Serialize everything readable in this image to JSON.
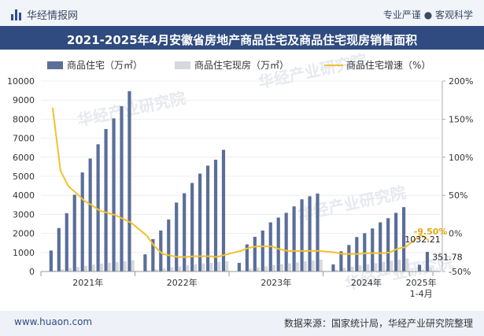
{
  "header": {
    "brand": "华经情报网",
    "tagline": "专业严谨 ● 客观科学"
  },
  "title": "2021-2025年4月安徽省房地产商品住宅及商品住宅现房销售面积",
  "footer": {
    "site": "www.huaon.com",
    "source": "数据来源：国家统计局，华经产业研究院整理"
  },
  "watermark": "华经产业研究院",
  "chart_data": {
    "type": "bar",
    "x_tick_labels": [
      "2021年",
      "2022年",
      "2023年",
      "2024年",
      "2025年\n1-4月"
    ],
    "ylim_left": [
      0,
      10000
    ],
    "yticks_left": [
      "0",
      "1000",
      "2000",
      "3000",
      "4000",
      "5000",
      "6000",
      "7000",
      "8000",
      "9000",
      "10000"
    ],
    "ylim_right": [
      -50,
      200
    ],
    "yticks_right": [
      "-50%",
      "0%",
      "50%",
      "100%",
      "150%",
      "200%"
    ],
    "legend_position": "top",
    "colors": {
      "residential": "#5a6e98",
      "existing": "#d5d8de",
      "growth": "#f3c12d"
    },
    "series": [
      {
        "name": "商品住宅（万㎡）",
        "axis": "left",
        "values": [
          1100,
          2280,
          3060,
          4030,
          5200,
          5930,
          6680,
          7480,
          8040,
          8680,
          9470,
          900,
          1700,
          2150,
          2730,
          3620,
          4110,
          4650,
          5140,
          5560,
          5870,
          6390,
          450,
          1420,
          1820,
          2150,
          2580,
          2830,
          3080,
          3420,
          3790,
          3950,
          4090,
          370,
          1060,
          1390,
          1810,
          2010,
          2260,
          2580,
          2800,
          3080,
          3380,
          351.78,
          1032.21
        ]
      },
      {
        "name": "商品住宅现房（万㎡）",
        "axis": "left",
        "values": [
          50,
          120,
          180,
          240,
          300,
          360,
          410,
          460,
          500,
          540,
          590,
          60,
          120,
          170,
          220,
          270,
          320,
          370,
          420,
          460,
          500,
          540,
          70,
          150,
          210,
          270,
          330,
          380,
          430,
          480,
          530,
          580,
          620,
          90,
          180,
          250,
          320,
          380,
          440,
          500,
          560,
          620,
          680,
          100,
          200
        ]
      },
      {
        "name": "商品住宅增速（%）",
        "axis": "right",
        "values": [
          165,
          82,
          62,
          53,
          43,
          37,
          30,
          27,
          24,
          19,
          14,
          -3,
          -17,
          -27,
          -29,
          -31,
          -31,
          -30,
          -30,
          -30,
          -31,
          -28,
          -23,
          -19,
          -17,
          -17,
          -17,
          -21,
          -23,
          -23,
          -23,
          -23,
          -23,
          -25,
          -27,
          -27,
          -27,
          -26,
          -26,
          -26,
          -25,
          -20,
          -18,
          -2,
          -9.5
        ]
      }
    ],
    "annotations": [
      "-9.50%",
      "1032.21",
      "351.78"
    ]
  }
}
